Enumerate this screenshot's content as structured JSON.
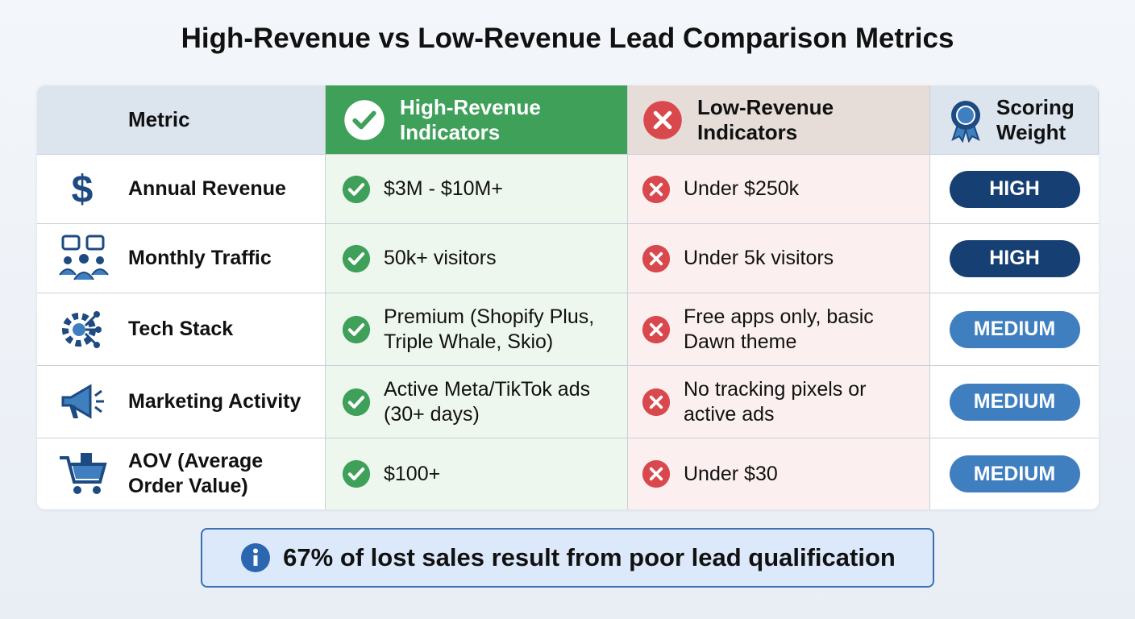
{
  "title": "High-Revenue vs Low-Revenue Lead Comparison Metrics",
  "table": {
    "headers": [
      "Metric",
      "High-Revenue Indicators",
      "Low-Revenue Indicators",
      "Scoring Weight"
    ],
    "rows": [
      [
        "Annual Revenue",
        "$3M - $10M+",
        "Under $250k",
        "HIGH"
      ],
      [
        "Monthly Traffic",
        "50k+ visitors",
        "Under 5k visitors",
        "HIGH"
      ],
      [
        "Tech Stack",
        "Premium (Shopify Plus, Triple Whale, Skio)",
        "Free apps only, basic Dawn theme",
        "MEDIUM"
      ],
      [
        "Marketing Activity",
        "Active Meta/TikTok ads (30+ days)",
        "No tracking pixels or active ads",
        "MEDIUM"
      ],
      [
        "AOV (Average Order Value)",
        "$100+",
        "Under $30",
        "MEDIUM"
      ]
    ]
  },
  "note": "67% of lost sales result from poor lead qualification"
}
